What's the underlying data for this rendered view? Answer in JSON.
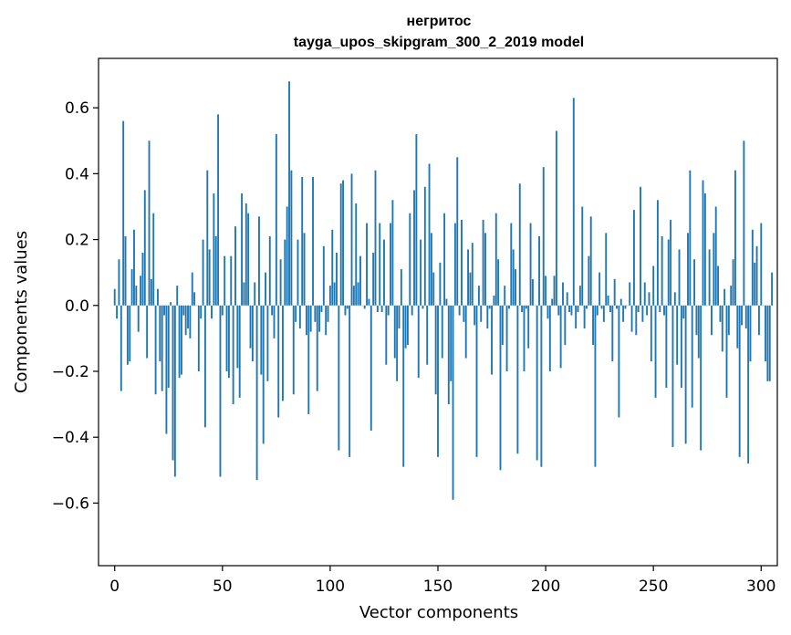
{
  "chart_data": {
    "type": "bar",
    "title": "негритос",
    "subtitle": "tayga_upos_skipgram_300_2_2019 model",
    "xlabel": "Vector components",
    "ylabel": "Components values",
    "xlim": [
      -7.5,
      307.5
    ],
    "ylim": [
      -0.79,
      0.75
    ],
    "xticks": [
      0,
      50,
      100,
      150,
      200,
      250,
      300
    ],
    "yticks": [
      -0.6,
      -0.4,
      -0.2,
      0.0,
      0.2,
      0.4,
      0.6
    ],
    "xtick_labels": [
      "0",
      "50",
      "100",
      "150",
      "200",
      "250",
      "300"
    ],
    "ytick_labels": [
      "−0.6",
      "−0.4",
      "−0.2",
      "0.0",
      "0.2",
      "0.4",
      "0.6"
    ],
    "bar_color": "#1f77b4",
    "values": [
      0.05,
      -0.04,
      0.14,
      -0.26,
      0.56,
      0.21,
      -0.18,
      -0.17,
      0.11,
      0.23,
      0.06,
      -0.08,
      0.09,
      0.16,
      0.35,
      -0.16,
      0.5,
      0.08,
      0.28,
      -0.27,
      0.05,
      -0.17,
      -0.26,
      -0.03,
      -0.39,
      -0.25,
      0.01,
      -0.47,
      -0.52,
      0.06,
      -0.22,
      -0.21,
      -0.03,
      -0.09,
      -0.07,
      -0.1,
      0.1,
      0.04,
      0.0,
      -0.2,
      -0.04,
      0.2,
      -0.37,
      0.41,
      0.17,
      -0.04,
      0.34,
      0.21,
      0.58,
      -0.52,
      -0.03,
      0.15,
      -0.2,
      -0.22,
      0.15,
      -0.3,
      0.24,
      -0.19,
      -0.28,
      0.34,
      0.07,
      0.31,
      0.28,
      -0.13,
      -0.17,
      0.07,
      -0.53,
      0.27,
      -0.21,
      -0.42,
      0.1,
      -0.23,
      0.21,
      -0.03,
      -0.1,
      0.52,
      -0.34,
      0.14,
      -0.29,
      0.2,
      0.3,
      0.68,
      0.41,
      -0.27,
      -0.05,
      0.2,
      -0.07,
      0.39,
      0.22,
      -0.09,
      -0.33,
      -0.08,
      0.39,
      -0.05,
      -0.26,
      -0.08,
      -0.02,
      0.18,
      -0.09,
      -0.05,
      0.06,
      0.23,
      0.07,
      0.16,
      -0.44,
      0.37,
      0.38,
      -0.03,
      -0.01,
      -0.46,
      0.4,
      0.06,
      0.31,
      0.07,
      0.15,
      0.0,
      -0.01,
      0.25,
      0.02,
      -0.38,
      0.16,
      0.41,
      -0.02,
      0.25,
      -0.02,
      0.2,
      -0.18,
      -0.03,
      0.25,
      0.32,
      -0.16,
      -0.23,
      -0.07,
      0.11,
      -0.49,
      -0.13,
      -0.12,
      0.28,
      -0.03,
      0.35,
      0.52,
      -0.22,
      0.2,
      -0.01,
      0.36,
      -0.18,
      0.43,
      0.22,
      0.1,
      -0.27,
      -0.46,
      0.13,
      -0.16,
      0.28,
      0.02,
      -0.3,
      -0.23,
      -0.59,
      0.25,
      0.45,
      -0.03,
      0.26,
      -0.05,
      -0.16,
      0.17,
      0.1,
      0.19,
      -0.06,
      -0.46,
      0.06,
      -0.05,
      0.26,
      0.22,
      -0.07,
      -0.01,
      -0.21,
      0.03,
      0.28,
      0.14,
      -0.5,
      -0.12,
      0.06,
      -0.2,
      -0.01,
      0.25,
      0.17,
      0.11,
      -0.45,
      0.37,
      -0.02,
      -0.2,
      -0.01,
      -0.13,
      0.25,
      0.08,
      0.0,
      -0.47,
      0.21,
      -0.49,
      0.42,
      0.09,
      -0.04,
      -0.2,
      0.02,
      0.09,
      0.53,
      -0.03,
      -0.19,
      0.07,
      -0.12,
      0.04,
      -0.02,
      -0.03,
      0.63,
      -0.07,
      -0.02,
      0.06,
      0.3,
      -0.07,
      -0.01,
      0.15,
      0.27,
      -0.12,
      -0.49,
      -0.03,
      0.1,
      -0.01,
      -0.05,
      0.22,
      0.03,
      -0.02,
      -0.17,
      0.08,
      -0.01,
      -0.34,
      0.02,
      -0.05,
      -0.01,
      0.0,
      0.07,
      -0.08,
      0.29,
      -0.09,
      -0.02,
      0.36,
      -0.05,
      0.07,
      -0.03,
      0.04,
      -0.17,
      0.12,
      -0.28,
      0.32,
      -0.02,
      0.21,
      -0.03,
      -0.25,
      0.2,
      0.26,
      -0.43,
      0.04,
      -0.18,
      0.17,
      -0.25,
      -0.04,
      -0.42,
      0.22,
      0.41,
      -0.31,
      0.14,
      -0.09,
      -0.16,
      -0.44,
      0.38,
      0.34,
      0.0,
      0.17,
      -0.09,
      0.22,
      0.3,
      0.12,
      -0.05,
      -0.14,
      0.05,
      -0.28,
      -0.09,
      0.06,
      0.14,
      0.41,
      -0.13,
      -0.46,
      -0.06,
      0.5,
      -0.07,
      -0.48,
      -0.17,
      0.23,
      0.13,
      0.18,
      -0.09,
      0.25,
      0.0,
      -0.17,
      -0.23,
      -0.23,
      0.1
    ]
  }
}
